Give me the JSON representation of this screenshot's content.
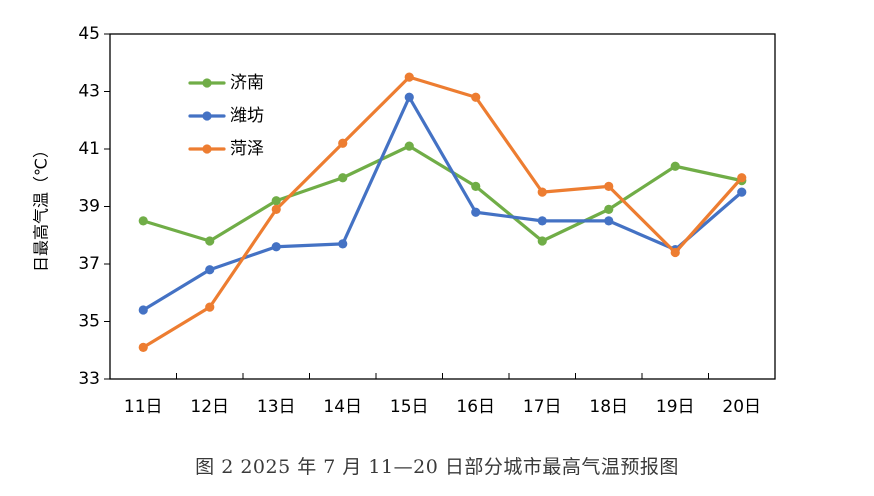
{
  "chart_data": {
    "type": "line",
    "categories": [
      "11日",
      "12日",
      "13日",
      "14日",
      "15日",
      "16日",
      "17日",
      "18日",
      "19日",
      "20日"
    ],
    "series": [
      {
        "name": "济南",
        "color": "#70ad47",
        "values": [
          38.5,
          37.8,
          39.2,
          40.0,
          41.1,
          39.7,
          37.8,
          38.9,
          40.4,
          39.9
        ]
      },
      {
        "name": "潍坊",
        "color": "#4472c4",
        "values": [
          35.4,
          36.8,
          37.6,
          37.7,
          42.8,
          38.8,
          38.5,
          38.5,
          37.5,
          39.5
        ]
      },
      {
        "name": "菏泽",
        "color": "#ed7d31",
        "values": [
          34.1,
          35.5,
          38.9,
          41.2,
          43.5,
          42.8,
          39.5,
          39.7,
          37.4,
          40.0
        ]
      }
    ],
    "title": "",
    "xlabel": "",
    "ylabel": "日最高气温（℃）",
    "ylim": [
      33,
      45
    ],
    "yticks": [
      33,
      35,
      37,
      39,
      41,
      43,
      45
    ],
    "legend_position": "top-left"
  },
  "caption": "图 2  2025 年 7 月 11—20 日部分城市最高气温预报图"
}
